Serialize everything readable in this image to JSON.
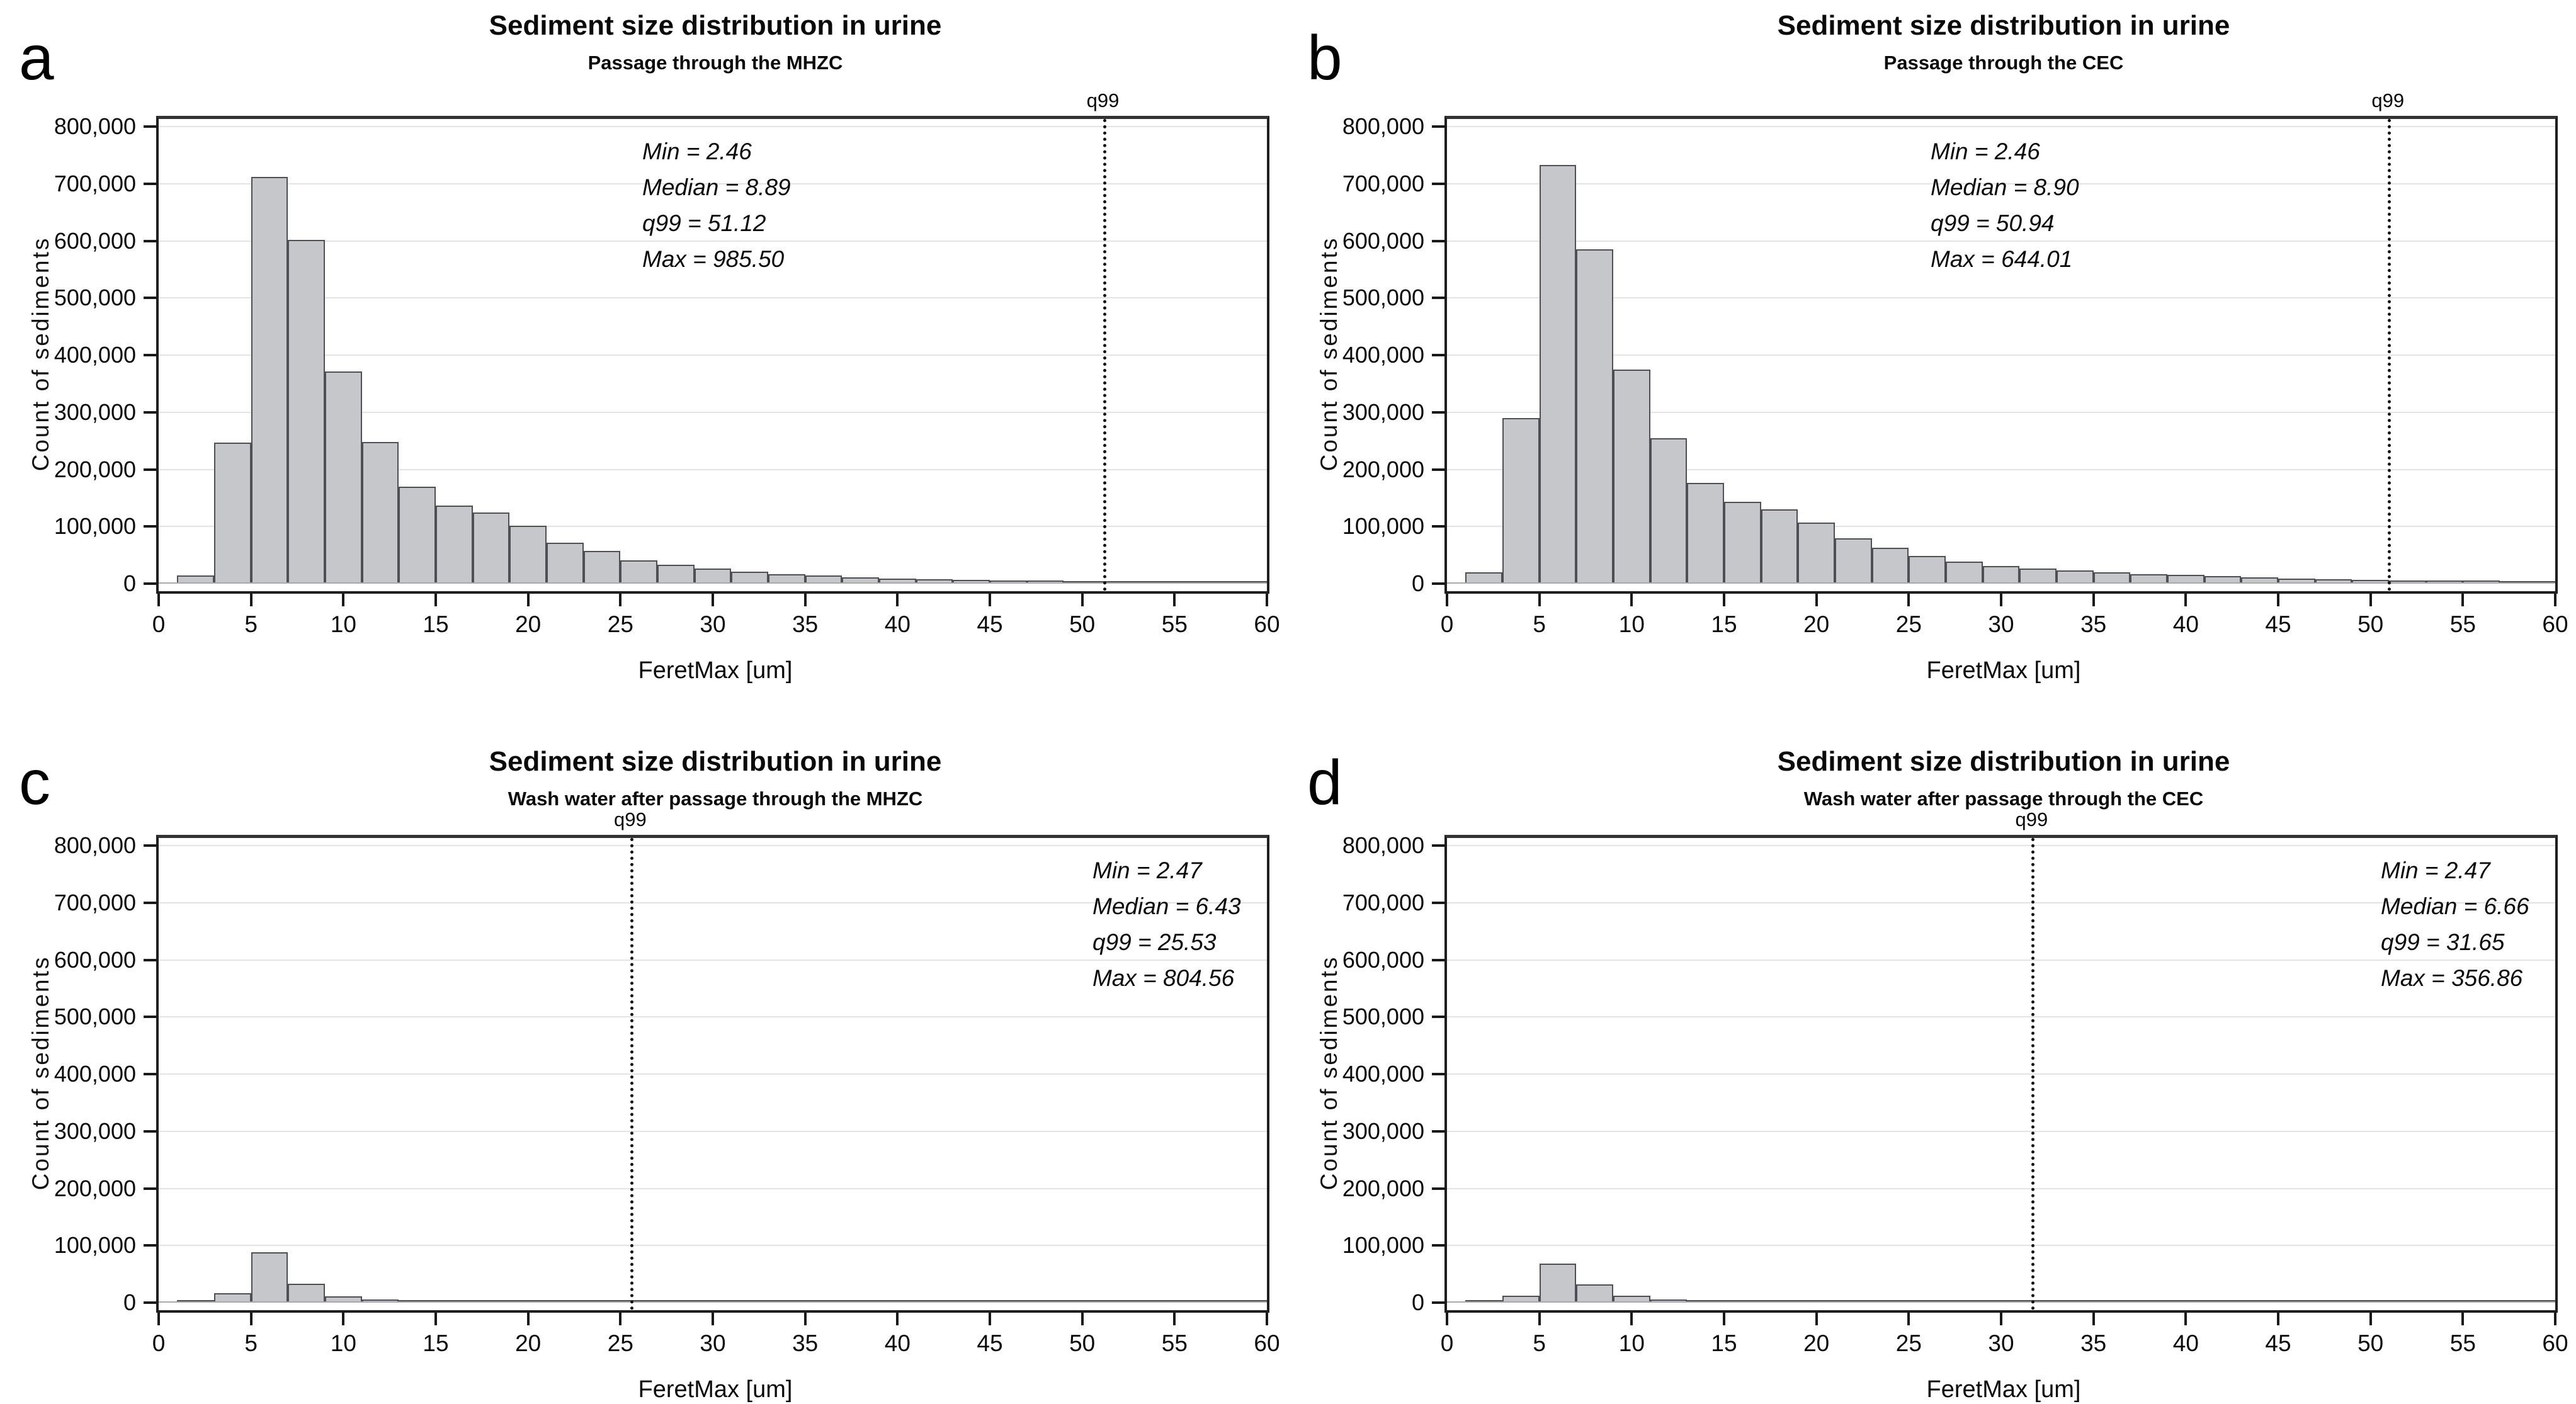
{
  "colors": {
    "bar_fill": "#c6c7cb",
    "bar_border": "#4d4f54",
    "gridline": "#e4e4e4",
    "axis": "#1f1f1f",
    "q99_line": "#141414",
    "text": "#0a0a0a"
  },
  "axes": {
    "x_tick_labels": [
      "0",
      "5",
      "10",
      "15",
      "20",
      "25",
      "30",
      "35",
      "40",
      "45",
      "50",
      "55",
      "60"
    ],
    "y_tick_labels": [
      "0",
      "100,000",
      "200,000",
      "300,000",
      "400,000",
      "500,000",
      "600,000",
      "700,000",
      "800,000"
    ]
  },
  "chart_data": [
    {
      "type": "bar",
      "panel_letter": "a",
      "title": "Sediment size distribution in urine",
      "subtitle": "Passage through the MHZC",
      "xlabel": "FeretMax [um]",
      "ylabel": "Count of sediments",
      "xlim": [
        0,
        60
      ],
      "ylim": [
        0,
        800000
      ],
      "grid": "horizontal",
      "bin_start": 1,
      "bin_width": 2,
      "counts": [
        14000,
        247000,
        712000,
        602000,
        371000,
        248000,
        170000,
        137000,
        124000,
        101000,
        72000,
        57000,
        41000,
        33000,
        26000,
        21000,
        17000,
        14000,
        11000,
        9000,
        8000,
        7000,
        6000,
        5000,
        4000,
        4000,
        3000,
        3000,
        3000,
        3000
      ],
      "q99_value": 51.12,
      "q99_label": "q99",
      "stats": [
        "Min = 2.46",
        "Median = 8.89",
        "q99 = 51.12",
        "Max = 985.50"
      ],
      "stats_position": "center"
    },
    {
      "type": "bar",
      "panel_letter": "b",
      "title": "Sediment size distribution in urine",
      "subtitle": "Passage through the CEC",
      "xlabel": "FeretMax [um]",
      "ylabel": "Count of sediments",
      "xlim": [
        0,
        60
      ],
      "ylim": [
        0,
        800000
      ],
      "grid": "horizontal",
      "bin_start": 1,
      "bin_width": 2,
      "counts": [
        20000,
        290000,
        733000,
        585000,
        375000,
        255000,
        176000,
        143000,
        130000,
        107000,
        79000,
        63000,
        48000,
        39000,
        31000,
        27000,
        23000,
        20000,
        17000,
        15000,
        13000,
        11000,
        9000,
        8000,
        7000,
        6000,
        5000,
        5000,
        4000,
        4000
      ],
      "q99_value": 50.94,
      "q99_label": "q99",
      "stats": [
        "Min = 2.46",
        "Median = 8.90",
        "q99 = 50.94",
        "Max = 644.01"
      ],
      "stats_position": "center"
    },
    {
      "type": "bar",
      "panel_letter": "c",
      "title": "Sediment size distribution in urine",
      "subtitle": "Wash water after passage through the MHZC",
      "xlabel": "FeretMax [um]",
      "ylabel": "Count of sediments",
      "xlim": [
        0,
        60
      ],
      "ylim": [
        0,
        800000
      ],
      "grid": "horizontal",
      "bin_start": 1,
      "bin_width": 2,
      "counts": [
        1000,
        17000,
        88000,
        33000,
        11000,
        5000,
        3000,
        2000,
        2000,
        2000,
        2000,
        2000,
        2000,
        2000,
        2000,
        2000,
        2000,
        2000,
        2000,
        2000,
        2000,
        2000,
        2000,
        2000,
        2000,
        2000,
        2000,
        2000,
        2000,
        2000
      ],
      "q99_value": 25.53,
      "q99_label": "q99",
      "stats": [
        "Min = 2.47",
        "Median = 6.43",
        "q99 = 25.53",
        "Max = 804.56"
      ],
      "stats_position": "right"
    },
    {
      "type": "bar",
      "panel_letter": "d",
      "title": "Sediment size distribution in urine",
      "subtitle": "Wash water after passage through the CEC",
      "xlabel": "FeretMax [um]",
      "ylabel": "Count of sediments",
      "xlim": [
        0,
        60
      ],
      "ylim": [
        0,
        800000
      ],
      "grid": "horizontal",
      "bin_start": 1,
      "bin_width": 2,
      "counts": [
        1000,
        12000,
        68000,
        32000,
        12000,
        5000,
        3000,
        2000,
        2000,
        2000,
        2000,
        2000,
        2000,
        2000,
        2000,
        2000,
        2000,
        2000,
        2000,
        2000,
        2000,
        2000,
        2000,
        2000,
        2000,
        2000,
        2000,
        2000,
        2000,
        2000
      ],
      "q99_value": 31.65,
      "q99_label": "q99",
      "stats": [
        "Min = 2.47",
        "Median = 6.66",
        "q99 = 31.65",
        "Max = 356.86"
      ],
      "stats_position": "right"
    }
  ]
}
